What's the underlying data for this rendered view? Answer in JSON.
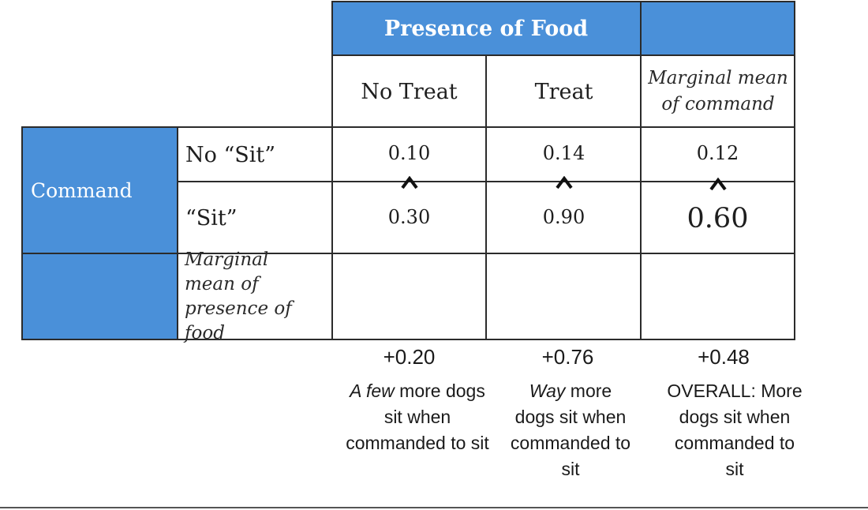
{
  "header": {
    "factor_label": "Presence of Food",
    "columns": [
      "No Treat",
      "Treat"
    ],
    "marginal_column_label": "Marginal mean of command"
  },
  "rows": {
    "factor_label": "Command",
    "levels": [
      "No “Sit”",
      "“Sit”"
    ],
    "marginal_row_label": "Marginal mean of presence of food"
  },
  "cells": {
    "no_sit": {
      "no_treat": "0.10",
      "treat": "0.14",
      "marginal": "0.12"
    },
    "sit": {
      "no_treat": "0.30",
      "treat": "0.90",
      "marginal": "0.60"
    }
  },
  "comparison_symbol": "^",
  "differences": [
    {
      "value": "+0.20",
      "note_em": "A few",
      "note_rest": " more dogs sit when commanded to sit"
    },
    {
      "value": "+0.76",
      "note_em": "Way",
      "note_rest": " more dogs sit when commanded to sit"
    },
    {
      "value": "+0.48",
      "note_em": "",
      "note_rest": "OVERALL: More dogs sit when commanded to sit"
    }
  ],
  "colors": {
    "header_blue": "#4a90d9",
    "grid_line": "#2b2b2b",
    "text": "#1e1e1e"
  }
}
